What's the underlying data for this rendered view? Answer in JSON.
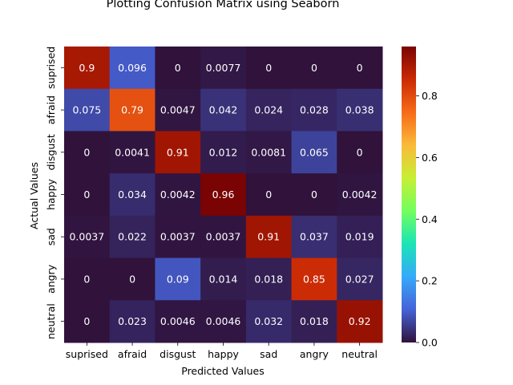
{
  "chart_data": {
    "type": "heatmap",
    "title": "Plotting Confusion Matrix using Seaborn",
    "xlabel": "Predicted Values",
    "ylabel": "Actual Values",
    "x_categories": [
      "suprised",
      "afraid",
      "disgust",
      "happy",
      "sad",
      "angry",
      "neutral"
    ],
    "y_categories": [
      "suprised",
      "afraid",
      "disgust",
      "happy",
      "sad",
      "angry",
      "neutral"
    ],
    "values": [
      [
        0.9,
        0.096,
        0,
        0.0077,
        0,
        0,
        0
      ],
      [
        0.075,
        0.79,
        0.0047,
        0.042,
        0.024,
        0.028,
        0.038
      ],
      [
        0,
        0.0041,
        0.91,
        0.012,
        0.0081,
        0.065,
        0
      ],
      [
        0,
        0.034,
        0.0042,
        0.96,
        0,
        0,
        0.0042
      ],
      [
        0.0037,
        0.022,
        0.0037,
        0.0037,
        0.91,
        0.037,
        0.019
      ],
      [
        0,
        0,
        0.09,
        0.014,
        0.018,
        0.85,
        0.027
      ],
      [
        0,
        0.023,
        0.0046,
        0.0046,
        0.032,
        0.018,
        0.92
      ]
    ],
    "colorbar": {
      "range": [
        0,
        0.96
      ],
      "ticks": [
        "0.0",
        "0.2",
        "0.4",
        "0.6",
        "0.8"
      ],
      "tick_values": [
        0,
        0.2,
        0.4,
        0.6,
        0.8
      ]
    },
    "colormap": "turbo",
    "colormap_stops": [
      "#30123b",
      "#4662d7",
      "#36aaf9",
      "#1ae4b6",
      "#72fe5e",
      "#c7ef34",
      "#faba39",
      "#f66b19",
      "#cb2a04",
      "#7a0403"
    ]
  }
}
